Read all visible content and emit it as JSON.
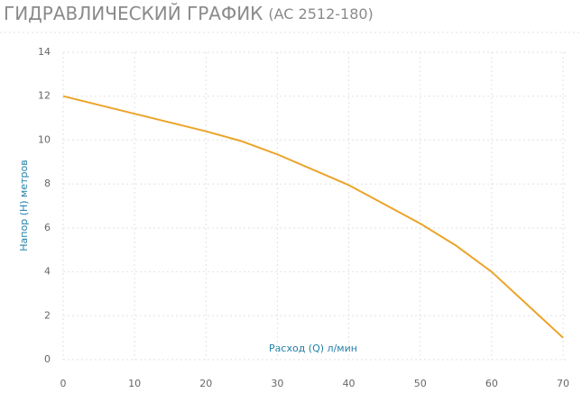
{
  "chart_data": {
    "type": "line",
    "title": "ГИДРАВЛИЧЕСКИЙ ГРАФИК",
    "subtitle": "(AC 2512-180)",
    "x_label": "Расход (Q) л/мин",
    "y_label": "Напор (H) метров",
    "x": [
      0,
      10,
      20,
      25,
      30,
      40,
      50,
      55,
      60,
      65,
      70
    ],
    "series": [
      {
        "name": "AC 2512-180",
        "color": "#eba42a",
        "values": [
          12,
          11.2,
          10.4,
          9.95,
          9.35,
          7.95,
          6.2,
          5.2,
          4.0,
          2.5,
          1.0
        ]
      }
    ],
    "xlim": [
      0,
      70
    ],
    "xticks": [
      0,
      10,
      20,
      30,
      40,
      50,
      60,
      70
    ],
    "ylim": [
      0,
      14
    ],
    "yticks": [
      0,
      2,
      4,
      6,
      8,
      10,
      12,
      14
    ],
    "grid": true
  }
}
